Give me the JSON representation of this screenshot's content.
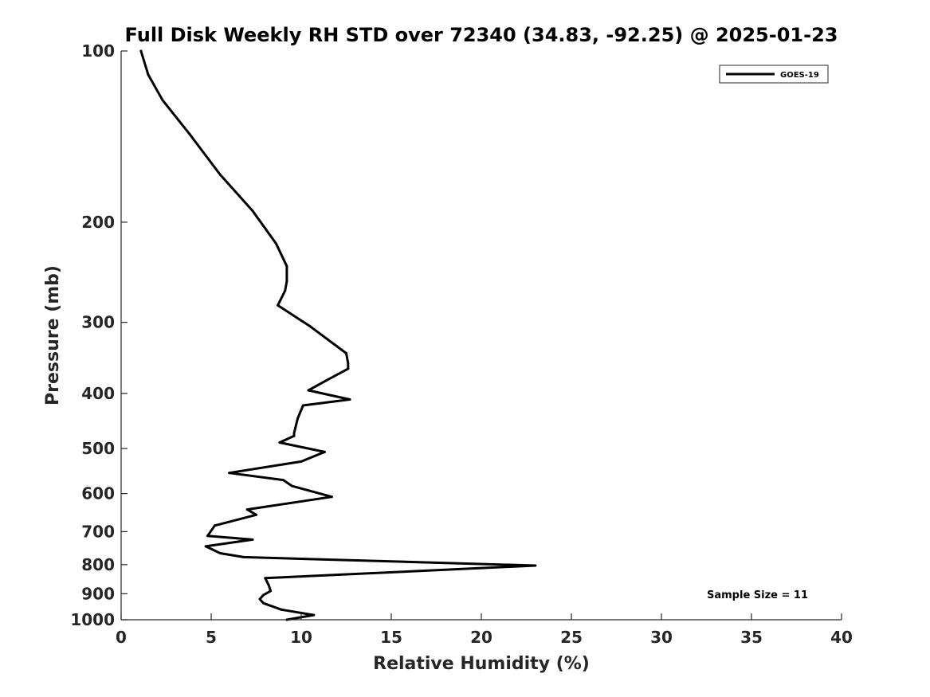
{
  "chart_data": {
    "type": "line",
    "title": "Full Disk Weekly RH STD over 72340 (34.83, -92.25) @ 2025-01-23",
    "xlabel": "Relative Humidity (%)",
    "ylabel": "Pressure (mb)",
    "xlim": [
      0,
      40
    ],
    "ylim": [
      100,
      1000
    ],
    "y_scale": "log",
    "y_reversed": true,
    "x_ticks": [
      0,
      5,
      10,
      15,
      20,
      25,
      30,
      35,
      40
    ],
    "x_tick_labels": [
      "0",
      "5",
      "10",
      "15",
      "20",
      "25",
      "30",
      "35",
      "40"
    ],
    "y_ticks": [
      100,
      200,
      300,
      400,
      500,
      600,
      700,
      800,
      900,
      1000
    ],
    "y_tick_labels": [
      "100",
      "200",
      "300",
      "400",
      "500",
      "600",
      "700",
      "800",
      "900",
      "1000"
    ],
    "grid": false,
    "legend_position": "top-right",
    "annotation": "Sample Size = 11",
    "series": [
      {
        "name": "GOES-19",
        "color": "#000000",
        "x": [
          1.1,
          1.5,
          2.3,
          3.8,
          5.5,
          7.3,
          8.6,
          9.2,
          9.2,
          9.1,
          8.7,
          10.5,
          12.5,
          12.6,
          12.6,
          11.5,
          10.4,
          12.7,
          10.1,
          9.8,
          9.6,
          9.6,
          8.8,
          11.3,
          10.0,
          6.0,
          9.0,
          9.5,
          11.7,
          7.0,
          7.5,
          5.2,
          4.8,
          7.3,
          4.7,
          5.5,
          6.8,
          23.0,
          8.0,
          8.2,
          8.3,
          7.9,
          7.7,
          7.9,
          8.9,
          10.7,
          9.2
        ],
        "y": [
          100,
          110,
          122,
          140,
          165,
          191,
          218,
          239,
          254,
          264,
          280,
          305,
          340,
          354,
          362,
          378,
          395,
          410,
          420,
          443,
          470,
          475,
          488,
          507,
          527,
          552,
          568,
          582,
          608,
          640,
          654,
          683,
          712,
          723,
          743,
          764,
          776,
          803,
          845,
          870,
          890,
          905,
          920,
          935,
          960,
          981,
          1000
        ]
      }
    ]
  }
}
